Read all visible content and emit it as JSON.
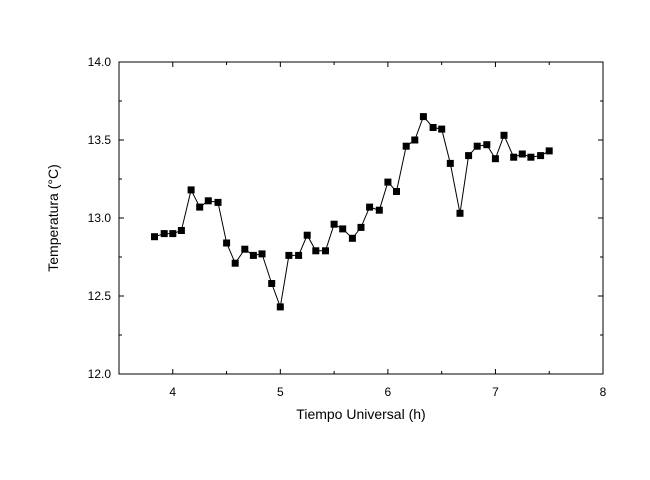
{
  "chart_data": {
    "type": "line",
    "title": "",
    "xlabel": "Tiempo Universal (h)",
    "ylabel": "Temperatura (°C)",
    "xlim": [
      3.5,
      8
    ],
    "ylim": [
      12.0,
      14.0
    ],
    "x_ticks": [
      4,
      5,
      6,
      7,
      8
    ],
    "x_tick_labels": [
      "4",
      "5",
      "6",
      "7",
      "8"
    ],
    "y_ticks": [
      12.0,
      12.5,
      13.0,
      13.5,
      14.0
    ],
    "y_tick_labels": [
      "12.0",
      "12.5",
      "13.0",
      "13.5",
      "14.0"
    ],
    "grid": false,
    "marker": "square",
    "color": "#000000",
    "x": [
      3.83,
      3.92,
      4.0,
      4.08,
      4.17,
      4.25,
      4.33,
      4.42,
      4.5,
      4.58,
      4.67,
      4.75,
      4.83,
      4.92,
      5.0,
      5.08,
      5.17,
      5.25,
      5.33,
      5.42,
      5.5,
      5.58,
      5.67,
      5.75,
      5.83,
      5.92,
      6.0,
      6.08,
      6.17,
      6.25,
      6.33,
      6.42,
      6.5,
      6.58,
      6.67,
      6.75,
      6.83,
      6.92,
      7.0,
      7.08,
      7.17,
      7.25,
      7.33,
      7.42,
      7.5
    ],
    "y": [
      12.88,
      12.9,
      12.9,
      12.92,
      13.18,
      13.07,
      13.11,
      13.1,
      12.84,
      12.71,
      12.8,
      12.76,
      12.77,
      12.58,
      12.43,
      12.76,
      12.76,
      12.89,
      12.79,
      12.79,
      12.96,
      12.93,
      12.87,
      12.94,
      13.07,
      13.05,
      13.23,
      13.17,
      13.46,
      13.5,
      13.65,
      13.58,
      13.57,
      13.35,
      13.03,
      13.4,
      13.46,
      13.47,
      13.38,
      13.53,
      13.39,
      13.41,
      13.39,
      13.4,
      13.43
    ]
  }
}
